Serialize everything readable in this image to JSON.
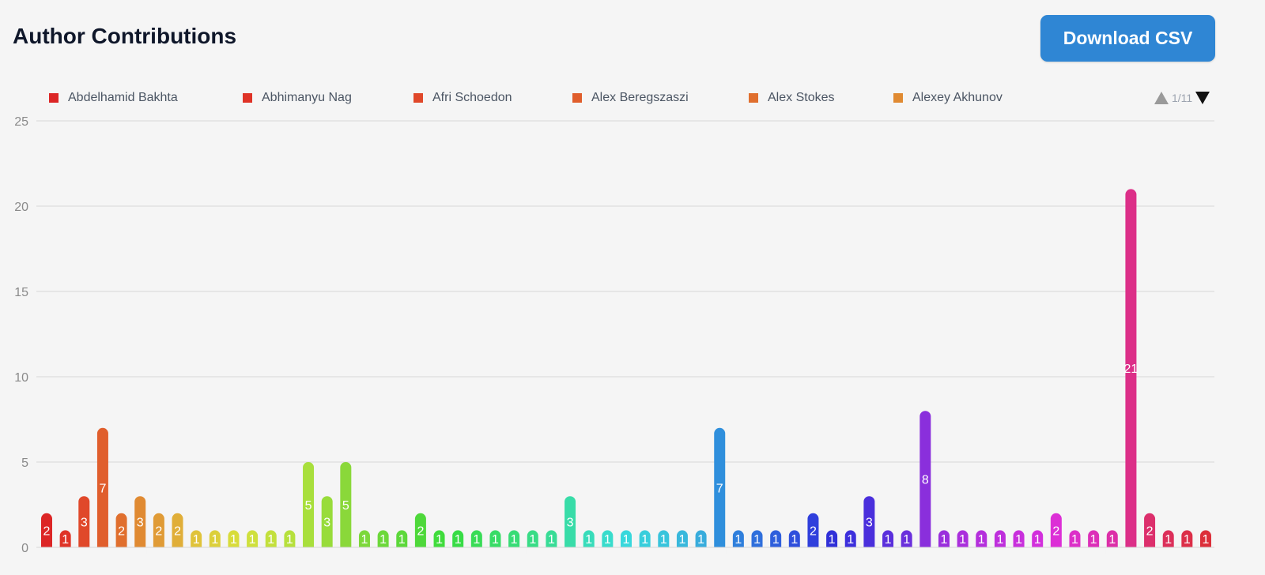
{
  "header": {
    "title": "Author Contributions",
    "download_label": "Download CSV"
  },
  "legend": {
    "items": [
      {
        "label": "Abdelhamid Bakhta",
        "color": "#dc2626"
      },
      {
        "label": "Abhimanyu Nag",
        "color": "#df3327"
      },
      {
        "label": "Afri Schoedon",
        "color": "#e0482a"
      },
      {
        "label": "Alex Beregszaszi",
        "color": "#e05e2c"
      },
      {
        "label": "Alex Stokes",
        "color": "#e06f2e"
      },
      {
        "label": "Alexey Akhunov",
        "color": "#e08a32"
      }
    ],
    "page": "1/11"
  },
  "chart_data": {
    "type": "bar",
    "ylim": [
      0,
      25
    ],
    "yticks": [
      0,
      5,
      10,
      15,
      20,
      25
    ],
    "grid": true,
    "legend_position": "top",
    "values": [
      2,
      1,
      3,
      7,
      2,
      3,
      2,
      2,
      1,
      1,
      1,
      1,
      1,
      1,
      5,
      3,
      5,
      1,
      1,
      1,
      2,
      1,
      1,
      1,
      1,
      1,
      1,
      1,
      3,
      1,
      1,
      1,
      1,
      1,
      1,
      1,
      7,
      1,
      1,
      1,
      1,
      2,
      1,
      1,
      3,
      1,
      1,
      8,
      1,
      1,
      1,
      1,
      1,
      1,
      2,
      1,
      1,
      1,
      21,
      2,
      1,
      1,
      1
    ],
    "colors": [
      "#dc2626",
      "#df3327",
      "#e0482a",
      "#e05e2c",
      "#e06f2e",
      "#e08a32",
      "#e09b36",
      "#e0ae38",
      "#e0c33a",
      "#dcd03a",
      "#d8dc3a",
      "#cfe03c",
      "#c3e03c",
      "#b6e03c",
      "#a8df3c",
      "#98dc3a",
      "#8ad83a",
      "#7cd83a",
      "#6cd83a",
      "#5cd83a",
      "#4ed83a",
      "#40dc3c",
      "#38dc46",
      "#38dc56",
      "#38dc66",
      "#38dc76",
      "#38dc86",
      "#38dc96",
      "#38dca8",
      "#38dcba",
      "#38dccc",
      "#38d8dc",
      "#38cedc",
      "#38c4dc",
      "#38b8dc",
      "#38acdc",
      "#2f8fdc",
      "#2f7fdc",
      "#2f6fdc",
      "#2f5fdc",
      "#2f4fdc",
      "#2f3fdc",
      "#3030d8",
      "#3c2fdc",
      "#4a2fdc",
      "#5a2fdc",
      "#6a2fdc",
      "#8a2fdc",
      "#9a2fdc",
      "#aa2fdc",
      "#b42fdc",
      "#be2fdc",
      "#c82fdc",
      "#d22fdc",
      "#dc2fd6",
      "#dc2fc8",
      "#dc2fb8",
      "#dc2fa8",
      "#dc2f88",
      "#dc2f6c",
      "#dc2f5a",
      "#dc2f48",
      "#dc2f3a"
    ]
  }
}
